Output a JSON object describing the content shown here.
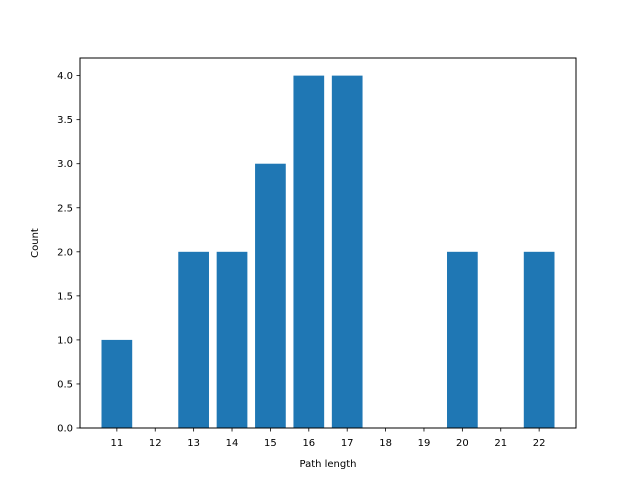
{
  "chart_data": {
    "type": "bar",
    "title": "",
    "xlabel": "Path length",
    "ylabel": "Count",
    "x_ticks": [
      11,
      12,
      13,
      14,
      15,
      16,
      17,
      18,
      19,
      20,
      21,
      22
    ],
    "x": [
      11,
      13,
      14,
      15,
      16,
      17,
      20,
      22
    ],
    "values": [
      1,
      2,
      2,
      3,
      4,
      4,
      2,
      2
    ],
    "y_ticks": [
      "0.0",
      "0.5",
      "1.0",
      "1.5",
      "2.0",
      "2.5",
      "3.0",
      "3.5",
      "4.0"
    ],
    "xlim": [
      10.04,
      22.96
    ],
    "ylim": [
      0,
      4.2
    ],
    "grid": false,
    "legend": "none",
    "bar_color": "#1f77b4"
  }
}
